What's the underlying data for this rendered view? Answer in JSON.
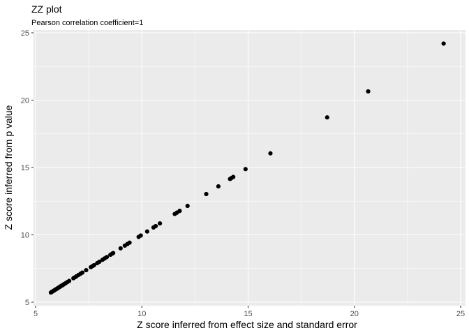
{
  "chart_data": {
    "type": "scatter",
    "title": "ZZ plot",
    "subtitle": "Pearson correlation coefficient=1",
    "xlabel": "Z score inferred from effect size and standard error",
    "ylabel": "Z score inferred from p value",
    "xlim": [
      5,
      25
    ],
    "ylim": [
      5,
      25
    ],
    "xticks": [
      5,
      10,
      15,
      20,
      25
    ],
    "yticks": [
      5,
      10,
      15,
      20,
      25
    ],
    "grid": true,
    "panel_background": "#ebebeb",
    "grid_color": "#ffffff",
    "point_color": "#000000",
    "points": [
      [
        5.72,
        5.72
      ],
      [
        5.76,
        5.76
      ],
      [
        5.8,
        5.8
      ],
      [
        5.84,
        5.84
      ],
      [
        5.88,
        5.88
      ],
      [
        5.92,
        5.92
      ],
      [
        5.96,
        5.96
      ],
      [
        6.0,
        6.0
      ],
      [
        6.04,
        6.04
      ],
      [
        6.08,
        6.08
      ],
      [
        6.12,
        6.12
      ],
      [
        6.16,
        6.16
      ],
      [
        6.2,
        6.2
      ],
      [
        6.25,
        6.25
      ],
      [
        6.3,
        6.3
      ],
      [
        6.35,
        6.35
      ],
      [
        6.42,
        6.42
      ],
      [
        6.5,
        6.5
      ],
      [
        6.58,
        6.58
      ],
      [
        6.78,
        6.78
      ],
      [
        6.85,
        6.85
      ],
      [
        6.93,
        6.93
      ],
      [
        7.03,
        7.03
      ],
      [
        7.12,
        7.12
      ],
      [
        7.2,
        7.2
      ],
      [
        7.38,
        7.38
      ],
      [
        7.6,
        7.6
      ],
      [
        7.68,
        7.68
      ],
      [
        7.75,
        7.75
      ],
      [
        7.9,
        7.9
      ],
      [
        8.0,
        8.0
      ],
      [
        8.15,
        8.15
      ],
      [
        8.25,
        8.25
      ],
      [
        8.35,
        8.35
      ],
      [
        8.52,
        8.52
      ],
      [
        8.6,
        8.6
      ],
      [
        8.65,
        8.65
      ],
      [
        9.0,
        9.0
      ],
      [
        9.2,
        9.2
      ],
      [
        9.32,
        9.32
      ],
      [
        9.42,
        9.42
      ],
      [
        9.85,
        9.85
      ],
      [
        9.95,
        9.95
      ],
      [
        10.25,
        10.25
      ],
      [
        10.55,
        10.55
      ],
      [
        10.65,
        10.65
      ],
      [
        10.85,
        10.85
      ],
      [
        11.55,
        11.55
      ],
      [
        11.65,
        11.65
      ],
      [
        11.78,
        11.78
      ],
      [
        12.15,
        12.15
      ],
      [
        13.03,
        13.03
      ],
      [
        13.6,
        13.6
      ],
      [
        14.15,
        14.15
      ],
      [
        14.22,
        14.22
      ],
      [
        14.3,
        14.3
      ],
      [
        14.88,
        14.88
      ],
      [
        16.05,
        16.05
      ],
      [
        18.72,
        18.72
      ],
      [
        20.65,
        20.65
      ],
      [
        24.2,
        24.2
      ]
    ]
  }
}
